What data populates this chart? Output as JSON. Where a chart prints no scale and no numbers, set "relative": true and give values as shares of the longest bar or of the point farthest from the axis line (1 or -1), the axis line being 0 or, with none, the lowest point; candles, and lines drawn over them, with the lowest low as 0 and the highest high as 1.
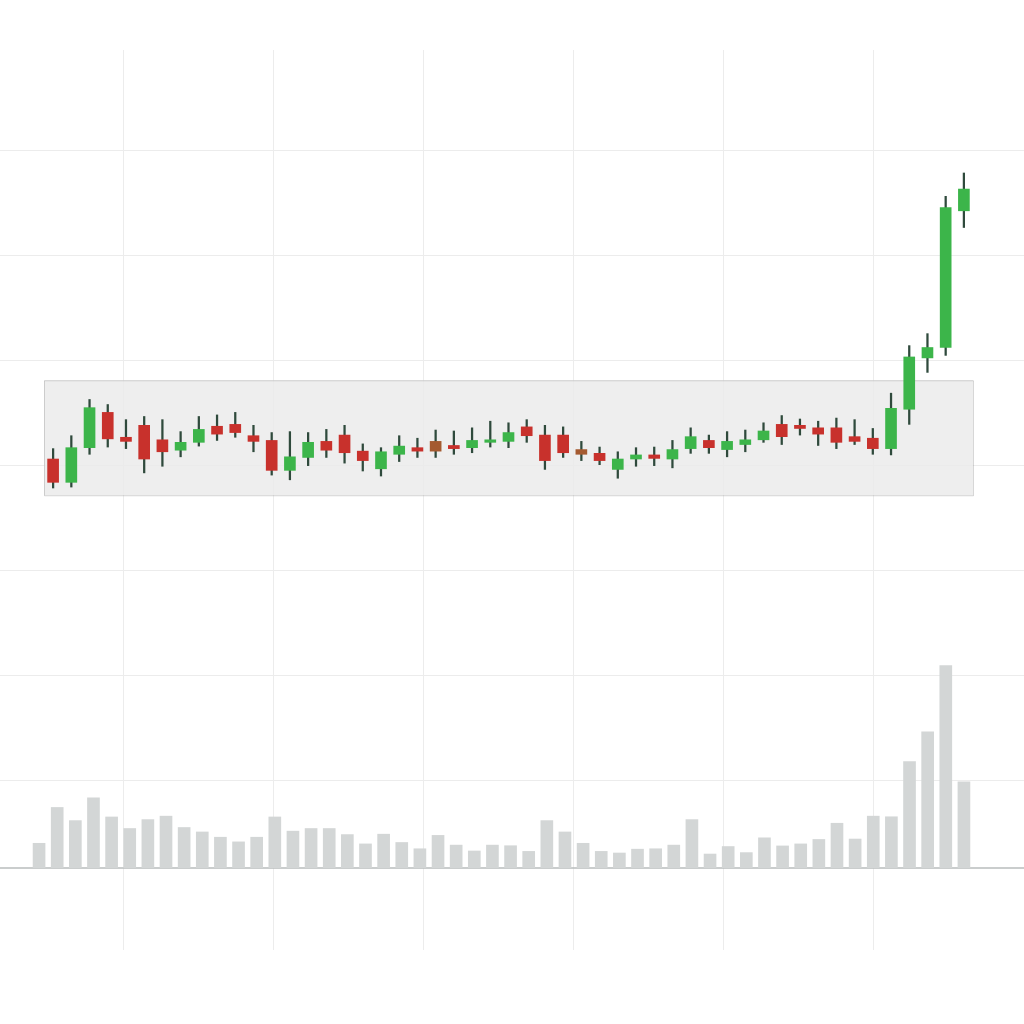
{
  "chart_data": [
    {
      "type": "candlestick",
      "relative": true,
      "tick_labels": false,
      "grid": true,
      "categories": [
        null,
        null,
        null,
        null,
        null,
        null,
        null,
        null,
        null,
        null,
        null,
        null,
        null,
        null,
        null,
        null,
        null,
        null,
        null,
        null,
        null,
        null,
        null,
        null,
        null,
        null,
        null,
        null,
        null,
        null,
        null,
        null,
        null,
        null,
        null,
        null,
        null,
        null,
        null,
        null,
        null,
        null,
        null,
        null,
        null,
        null,
        null,
        null,
        null,
        null,
        null
      ],
      "ohlc": [
        [
          0.092,
          0.125,
          0,
          0.018
        ],
        [
          0.018,
          0.166,
          0.003,
          0.128
        ],
        [
          0.128,
          0.281,
          0.107,
          0.255
        ],
        [
          0.24,
          0.265,
          0.13,
          0.156
        ],
        [
          0.161,
          0.217,
          0.125,
          0.148
        ],
        [
          0.199,
          0.227,
          0.048,
          0.092
        ],
        [
          0.153,
          0.217,
          0.069,
          0.115
        ],
        [
          0.12,
          0.179,
          0.099,
          0.145
        ],
        [
          0.145,
          0.227,
          0.133,
          0.186
        ],
        [
          0.196,
          0.232,
          0.151,
          0.171
        ],
        [
          0.202,
          0.24,
          0.161,
          0.176
        ],
        [
          0.166,
          0.199,
          0.115,
          0.148
        ],
        [
          0.151,
          0.176,
          0.041,
          0.056
        ],
        [
          0.056,
          0.179,
          0.026,
          0.099
        ],
        [
          0.097,
          0.176,
          0.071,
          0.145
        ],
        [
          0.148,
          0.186,
          0.097,
          0.12
        ],
        [
          0.168,
          0.199,
          0.079,
          0.112
        ],
        [
          0.117,
          0.14,
          0.054,
          0.087
        ],
        [
          0.061,
          0.128,
          0.038,
          0.115
        ],
        [
          0.107,
          0.166,
          0.084,
          0.133
        ],
        [
          0.128,
          0.158,
          0.097,
          0.117
        ],
        [
          0.148,
          0.184,
          0.097,
          0.117
        ],
        [
          0.135,
          0.181,
          0.107,
          0.125
        ],
        [
          0.128,
          0.191,
          0.112,
          0.151
        ],
        [
          0.145,
          0.212,
          0.13,
          0.153
        ],
        [
          0.148,
          0.207,
          0.128,
          0.176
        ],
        [
          0.194,
          0.217,
          0.145,
          0.166
        ],
        [
          0.168,
          0.199,
          0.059,
          0.087
        ],
        [
          0.168,
          0.194,
          0.097,
          0.112
        ],
        [
          0.122,
          0.148,
          0.087,
          0.107
        ],
        [
          0.11,
          0.13,
          0.074,
          0.087
        ],
        [
          0.059,
          0.115,
          0.031,
          0.092
        ],
        [
          0.092,
          0.128,
          0.069,
          0.105
        ],
        [
          0.105,
          0.13,
          0.071,
          0.094
        ],
        [
          0.092,
          0.151,
          0.064,
          0.122
        ],
        [
          0.125,
          0.191,
          0.11,
          0.163
        ],
        [
          0.151,
          0.168,
          0.11,
          0.128
        ],
        [
          0.122,
          0.179,
          0.099,
          0.148
        ],
        [
          0.138,
          0.184,
          0.115,
          0.153
        ],
        [
          0.153,
          0.207,
          0.145,
          0.181
        ],
        [
          0.202,
          0.23,
          0.138,
          0.163
        ],
        [
          0.199,
          0.219,
          0.168,
          0.189
        ],
        [
          0.191,
          0.212,
          0.135,
          0.171
        ],
        [
          0.191,
          0.222,
          0.125,
          0.145
        ],
        [
          0.163,
          0.217,
          0.138,
          0.148
        ],
        [
          0.158,
          0.189,
          0.107,
          0.125
        ],
        [
          0.125,
          0.301,
          0.105,
          0.253
        ],
        [
          0.25,
          0.452,
          0.202,
          0.416
        ],
        [
          0.413,
          0.49,
          0.367,
          0.446
        ],
        [
          0.446,
          0.926,
          0.421,
          0.89
        ],
        [
          0.88,
          1,
          0.827,
          0.949
        ]
      ],
      "colors": [
        "#c8312c",
        "#3cb54a",
        "#3cb54a",
        "#c8312c",
        "#c8312c",
        "#c8312c",
        "#c8312c",
        "#3cb54a",
        "#3cb54a",
        "#c8312c",
        "#c8312c",
        "#c8312c",
        "#c8312c",
        "#3cb54a",
        "#3cb54a",
        "#c8312c",
        "#c8312c",
        "#c8312c",
        "#3cb54a",
        "#3cb54a",
        "#c8312c",
        "#a45a30",
        "#c8312c",
        "#3cb54a",
        "#3cb54a",
        "#3cb54a",
        "#c8312c",
        "#c8312c",
        "#c8312c",
        "#a45a30",
        "#c8312c",
        "#3cb54a",
        "#3cb54a",
        "#c8312c",
        "#3cb54a",
        "#3cb54a",
        "#c8312c",
        "#3cb54a",
        "#3cb54a",
        "#3cb54a",
        "#c8312c",
        "#c8312c",
        "#c8312c",
        "#c8312c",
        "#c8312c",
        "#c8312c",
        "#3cb54a",
        "#3cb54a",
        "#3cb54a",
        "#3cb54a",
        "#3cb54a"
      ],
      "bands": [
        {
          "axis": "y",
          "from": -0.023,
          "to": 0.342,
          "color": "#ebebeb"
        }
      ]
    },
    {
      "type": "bar",
      "relative": true,
      "tick_labels": false,
      "grid": true,
      "color": "#d3d6d6",
      "categories": [
        null,
        null,
        null,
        null,
        null,
        null,
        null,
        null,
        null,
        null,
        null,
        null,
        null,
        null,
        null,
        null,
        null,
        null,
        null,
        null,
        null,
        null,
        null,
        null,
        null,
        null,
        null,
        null,
        null,
        null,
        null,
        null,
        null,
        null,
        null,
        null,
        null,
        null,
        null,
        null,
        null,
        null,
        null,
        null,
        null,
        null,
        null,
        null,
        null,
        null,
        null,
        null
      ],
      "values": [
        0.122,
        0.299,
        0.234,
        0.347,
        0.252,
        0.195,
        0.239,
        0.256,
        0.2,
        0.178,
        0.152,
        0.129,
        0.152,
        0.252,
        0.182,
        0.195,
        0.195,
        0.165,
        0.119,
        0.167,
        0.126,
        0.095,
        0.161,
        0.113,
        0.084,
        0.113,
        0.11,
        0.082,
        0.234,
        0.178,
        0.122,
        0.082,
        0.074,
        0.093,
        0.095,
        0.113,
        0.239,
        0.069,
        0.106,
        0.076,
        0.149,
        0.109,
        0.119,
        0.141,
        0.221,
        0.143,
        0.256,
        0.253,
        0.525,
        0.673,
        1,
        0.425
      ]
    }
  ]
}
